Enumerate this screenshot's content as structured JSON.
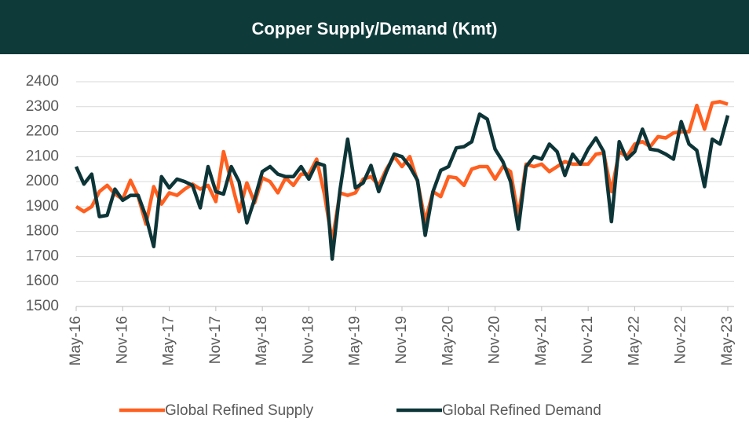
{
  "chart_data": {
    "type": "line",
    "title": "Copper Supply/Demand (Kmt)",
    "categories": [
      "May-16",
      null,
      null,
      null,
      null,
      null,
      "Nov-16",
      null,
      null,
      null,
      null,
      null,
      "May-17",
      null,
      null,
      null,
      null,
      null,
      "Nov-17",
      null,
      null,
      null,
      null,
      null,
      "May-18",
      null,
      null,
      null,
      null,
      null,
      "Nov-18",
      null,
      null,
      null,
      null,
      null,
      "May-19",
      null,
      null,
      null,
      null,
      null,
      "Nov-19",
      null,
      null,
      null,
      null,
      null,
      "May-20",
      null,
      null,
      null,
      null,
      null,
      "Nov-20",
      null,
      null,
      null,
      null,
      null,
      "May-21",
      null,
      null,
      null,
      null,
      null,
      "Nov-21",
      null,
      null,
      null,
      null,
      null,
      "May-22",
      null,
      null,
      null,
      null,
      null,
      "Nov-22",
      null,
      null,
      null,
      null,
      null,
      "May-23"
    ],
    "series": [
      {
        "name": "Global Refined Supply",
        "color": "#ff5f1f",
        "values": [
          1900,
          1880,
          1900,
          1960,
          1985,
          1950,
          1930,
          2005,
          1940,
          1830,
          1980,
          1910,
          1955,
          1945,
          1970,
          1990,
          1970,
          1985,
          1920,
          2120,
          2000,
          1880,
          1995,
          1915,
          2015,
          2000,
          1955,
          2015,
          1985,
          2030,
          2030,
          2090,
          1950,
          1760,
          1955,
          1945,
          1955,
          2010,
          2020,
          1985,
          2050,
          2100,
          2060,
          2100,
          2000,
          1840,
          1960,
          1940,
          2020,
          2015,
          1985,
          2050,
          2060,
          2060,
          2010,
          2060,
          2040,
          1860,
          2070,
          2060,
          2070,
          2040,
          2060,
          2080,
          2070,
          2070,
          2070,
          2110,
          2115,
          1960,
          2120,
          2100,
          2150,
          2160,
          2140,
          2180,
          2175,
          2195,
          2200,
          2200,
          2305,
          2210,
          2315,
          2320,
          2310
        ]
      },
      {
        "name": "Global Refined Demand",
        "color": "#0d3538",
        "values": [
          2060,
          1990,
          2030,
          1860,
          1865,
          1970,
          1925,
          1945,
          1945,
          1860,
          1740,
          2020,
          1975,
          2010,
          2000,
          1985,
          1895,
          2060,
          1960,
          1950,
          2060,
          2000,
          1835,
          1930,
          2040,
          2060,
          2030,
          2020,
          2020,
          2060,
          2010,
          2075,
          2065,
          1690,
          1965,
          2170,
          1975,
          1995,
          2065,
          1960,
          2040,
          2110,
          2100,
          2060,
          2005,
          1785,
          1960,
          2045,
          2060,
          2135,
          2140,
          2160,
          2270,
          2250,
          2130,
          2080,
          2000,
          1810,
          2060,
          2100,
          2090,
          2150,
          2120,
          2025,
          2110,
          2070,
          2130,
          2175,
          2120,
          1840,
          2160,
          2090,
          2120,
          2210,
          2130,
          2125,
          2110,
          2090,
          2240,
          2150,
          2125,
          1980,
          2170,
          2150,
          2265
        ]
      }
    ],
    "ylim": [
      1500,
      2400
    ],
    "yticks": [
      1500,
      1600,
      1700,
      1800,
      1900,
      2000,
      2100,
      2200,
      2300,
      2400
    ],
    "grid": true,
    "legend": "bottom"
  }
}
